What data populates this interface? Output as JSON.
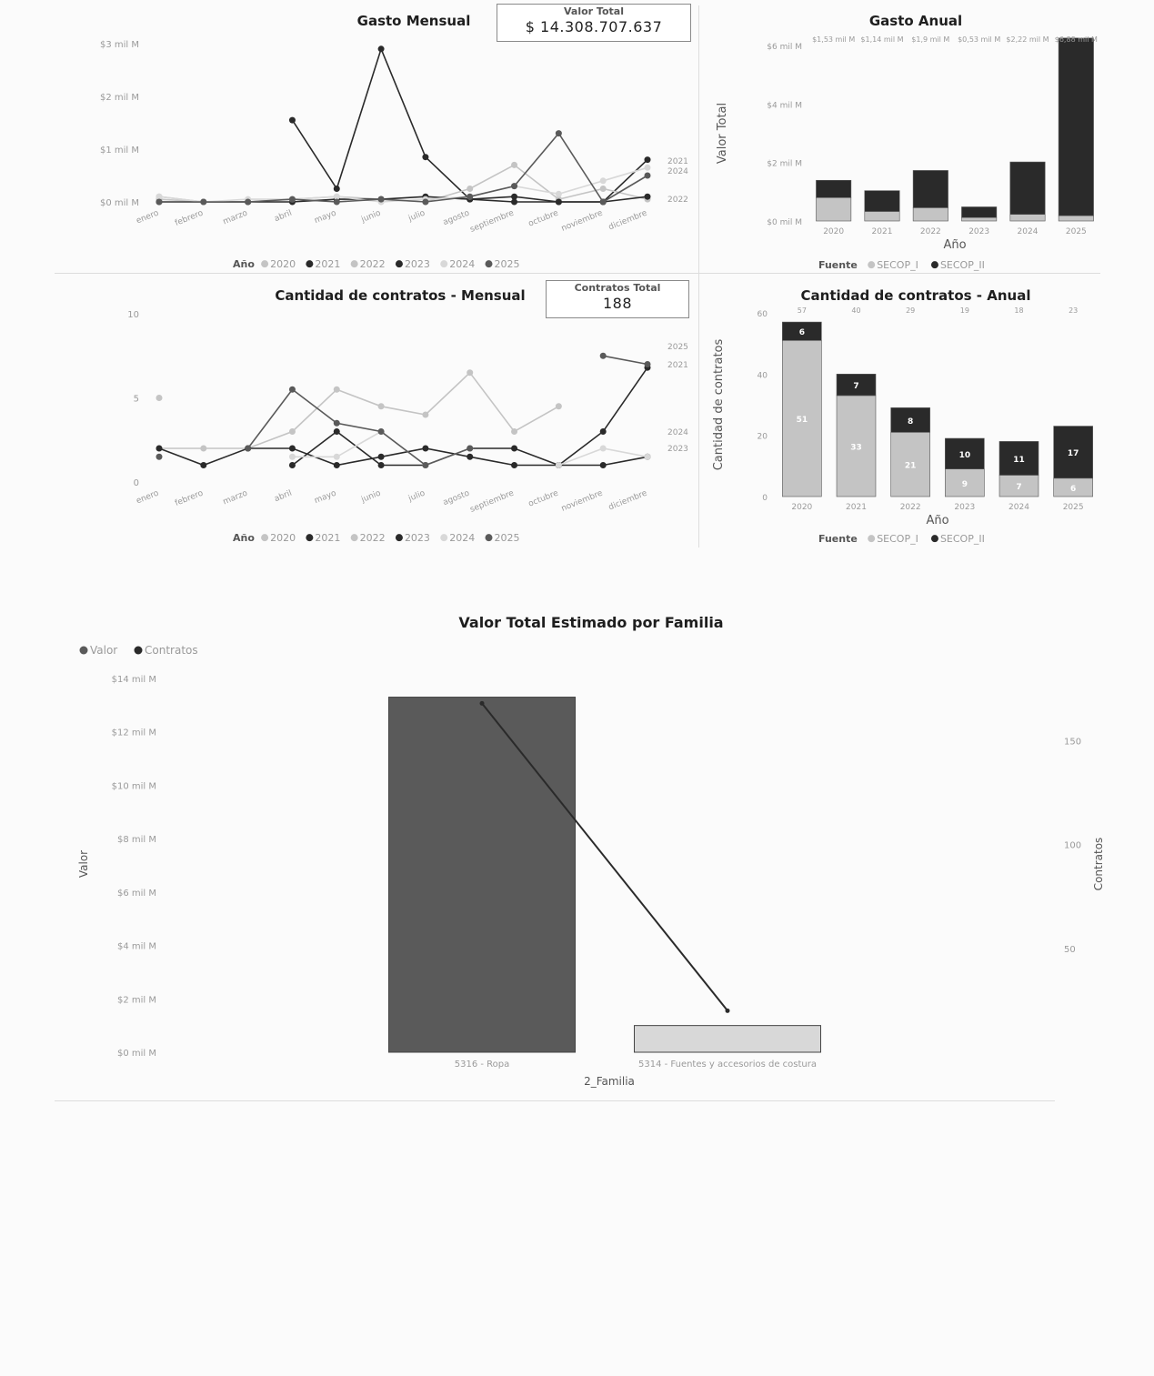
{
  "colors": {
    "dark": "#2a2a2a",
    "mid": "#5a5a5a",
    "light": "#c4c4c4",
    "pale": "#d8d8d8",
    "axis": "#9a9a9a"
  },
  "kpis": {
    "valor_total": {
      "label": "Valor Total",
      "value": "$ 14.308.707.637"
    },
    "contratos_total": {
      "label": "Contratos Total",
      "value": "188"
    }
  },
  "chart_data": [
    {
      "id": "gasto-mensual",
      "type": "line",
      "title": "Gasto Mensual",
      "xlabel": "",
      "ylabel": "",
      "categories": [
        "enero",
        "febrero",
        "marzo",
        "abril",
        "mayo",
        "junio",
        "julio",
        "agosto",
        "septiembre",
        "octubre",
        "noviembre",
        "diciembre"
      ],
      "y_ticks": [
        "$0 mil M",
        "$1 mil M",
        "$2 mil M",
        "$3 mil M"
      ],
      "ylim": [
        0,
        3
      ],
      "legend_title": "Año",
      "legend_position": "bottom",
      "end_labels": [
        "2021",
        "2024",
        "2022"
      ],
      "series": [
        {
          "name": "2020",
          "shade": "light",
          "values": [
            0.05,
            0,
            0,
            null,
            null,
            null,
            null,
            null,
            null,
            null,
            null,
            null
          ]
        },
        {
          "name": "2021",
          "shade": "dark",
          "values": [
            null,
            null,
            null,
            1.55,
            0.25,
            2.9,
            0.85,
            0.05,
            0.1,
            0,
            0,
            0.8
          ]
        },
        {
          "name": "2022",
          "shade": "light",
          "values": [
            0.1,
            0,
            0,
            0.05,
            0.1,
            0.05,
            0,
            0.25,
            0.7,
            0.05,
            0.25,
            0.05
          ]
        },
        {
          "name": "2023",
          "shade": "dark",
          "values": [
            0,
            0,
            0,
            0,
            0.05,
            0.05,
            0.1,
            0.05,
            0,
            0,
            0,
            0.1
          ]
        },
        {
          "name": "2024",
          "shade": "pale",
          "values": [
            0.1,
            0,
            0.05,
            0.05,
            0.1,
            0,
            0.05,
            0.1,
            0.3,
            0.15,
            0.4,
            0.65
          ]
        },
        {
          "name": "2025",
          "shade": "mid",
          "values": [
            0,
            0,
            0,
            0.05,
            0,
            0.05,
            0,
            0.1,
            0.3,
            1.3,
            0,
            0.5
          ]
        }
      ]
    },
    {
      "id": "gasto-anual",
      "type": "bar",
      "title": "Gasto Anual",
      "xlabel": "Año",
      "ylabel": "Valor Total",
      "categories": [
        "2020",
        "2021",
        "2022",
        "2023",
        "2024",
        "2025"
      ],
      "y_ticks": [
        "$0 mil M",
        "$2 mil M",
        "$4 mil M",
        "$6 mil M"
      ],
      "ylim": [
        0,
        6.6
      ],
      "legend_title": "Fuente",
      "legend_position": "bottom",
      "total_labels": [
        "$1,53 mil M",
        "$1,14 mil M",
        "$1,9 mil M",
        "$0,53 mil M",
        "$2,22 mil M",
        "$6,88 mil M"
      ],
      "series": [
        {
          "name": "SECOP_I",
          "shade": "light",
          "values": [
            0.88,
            0.36,
            0.5,
            0.13,
            0.25,
            0.2
          ]
        },
        {
          "name": "SECOP_II",
          "shade": "dark",
          "values": [
            0.65,
            0.78,
            1.4,
            0.4,
            1.97,
            6.68
          ]
        }
      ]
    },
    {
      "id": "contratos-mensual",
      "type": "line",
      "title": "Cantidad de contratos - Mensual",
      "xlabel": "",
      "ylabel": "",
      "categories": [
        "enero",
        "febrero",
        "marzo",
        "abril",
        "mayo",
        "junio",
        "julio",
        "agosto",
        "septiembre",
        "octubre",
        "noviembre",
        "diciembre"
      ],
      "y_ticks": [
        "0",
        "5",
        "10"
      ],
      "ylim": [
        0,
        10
      ],
      "legend_title": "Año",
      "legend_position": "bottom",
      "end_labels": [
        "2025",
        "2021",
        "2024",
        "2023"
      ],
      "series": [
        {
          "name": "2020",
          "shade": "light",
          "values": [
            5,
            null,
            null,
            null,
            null,
            null,
            null,
            null,
            null,
            null,
            null,
            null
          ]
        },
        {
          "name": "2021",
          "shade": "dark",
          "values": [
            null,
            null,
            null,
            1,
            3,
            1,
            1,
            2,
            2,
            1,
            3,
            6.8
          ]
        },
        {
          "name": "2022",
          "shade": "light",
          "values": [
            2,
            2,
            2,
            3,
            5.5,
            4.5,
            4,
            6.5,
            3,
            4.5,
            null,
            null
          ]
        },
        {
          "name": "2023",
          "shade": "dark",
          "values": [
            2,
            1,
            2,
            2,
            1,
            1.5,
            2,
            1.5,
            1,
            1,
            1,
            1.5
          ]
        },
        {
          "name": "2024",
          "shade": "pale",
          "values": [
            null,
            null,
            null,
            1.5,
            1.5,
            3,
            1,
            2,
            null,
            1,
            2,
            1.5
          ]
        },
        {
          "name": "2025",
          "shade": "mid",
          "values": [
            1.5,
            null,
            2,
            5.5,
            3.5,
            3,
            1,
            2,
            null,
            null,
            7.5,
            7
          ]
        }
      ]
    },
    {
      "id": "contratos-anual",
      "type": "bar",
      "title": "Cantidad de contratos - Anual",
      "xlabel": "Año",
      "ylabel": "Cantidad de contratos",
      "categories": [
        "2020",
        "2021",
        "2022",
        "2023",
        "2024",
        "2025"
      ],
      "y_ticks": [
        "0",
        "20",
        "40",
        "60"
      ],
      "ylim": [
        0,
        60
      ],
      "legend_title": "Fuente",
      "legend_position": "bottom",
      "total_labels": [
        "57",
        "40",
        "29",
        "19",
        "18",
        "23"
      ],
      "series": [
        {
          "name": "SECOP_I",
          "shade": "light",
          "values": [
            51,
            33,
            21,
            9,
            7,
            6
          ],
          "labels": [
            "51",
            "33",
            "21",
            "9",
            "7",
            "6"
          ]
        },
        {
          "name": "SECOP_II",
          "shade": "dark",
          "values": [
            6,
            7,
            8,
            10,
            11,
            17
          ],
          "labels": [
            "6",
            "7",
            "8",
            "10",
            "11",
            "17"
          ]
        }
      ]
    },
    {
      "id": "valor-familia",
      "type": "bar",
      "title": "Valor Total Estimado por Familia",
      "xlabel": "2_Familia",
      "ylabel": "Valor",
      "y2label": "Contratos",
      "categories": [
        "5316 - Ropa",
        "5314 - Fuentes y accesorios de costura"
      ],
      "y_ticks": [
        "$0 mil M",
        "$2 mil M",
        "$4 mil M",
        "$6 mil M",
        "$8 mil M",
        "$10 mil M",
        "$12 mil M",
        "$14 mil M"
      ],
      "y2_ticks": [
        "50",
        "100",
        "150"
      ],
      "ylim": [
        0,
        14
      ],
      "y2lim": [
        0,
        180
      ],
      "legend_position": "top-left",
      "series": [
        {
          "name": "Valor",
          "shade": "mid",
          "kind": "bar",
          "values": [
            13.3,
            1.0
          ]
        },
        {
          "name": "Contratos",
          "shade": "dark",
          "kind": "line",
          "values": [
            168,
            20
          ]
        }
      ]
    }
  ]
}
